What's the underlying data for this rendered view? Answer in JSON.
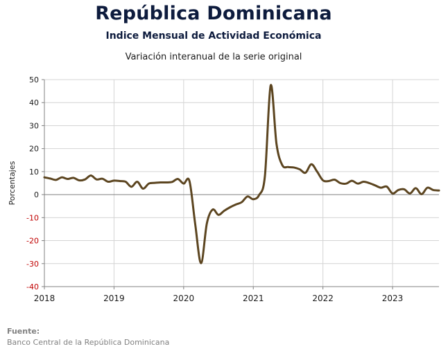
{
  "header": {
    "title": "República Dominicana",
    "subtitle": "Indice Mensual de  Actividad Económica",
    "subtitle2": "Variación interanual de la serie original"
  },
  "source": {
    "heading": "Fuente:",
    "text": "Banco Central de la República Dominicana"
  },
  "colors": {
    "line": "#5c4520",
    "zero_line": "#808080",
    "grid": "#d4d4d4",
    "negative_tick": "#c00000"
  },
  "chart_data": {
    "type": "line",
    "title": "República Dominicana",
    "xlabel": "",
    "ylabel": "Porcentajes",
    "ylim": [
      -40,
      50
    ],
    "yticks": [
      50,
      40,
      30,
      20,
      10,
      0,
      -10,
      -20,
      -30,
      -40
    ],
    "xlim": [
      "2018-01",
      "2023-09"
    ],
    "xticks": [
      "2018",
      "2019",
      "2020",
      "2021",
      "2022",
      "2023"
    ],
    "grid": true,
    "legend": "none",
    "series": [
      {
        "x": [
          "2018-01",
          "2018-02",
          "2018-03",
          "2018-04",
          "2018-05",
          "2018-06",
          "2018-07",
          "2018-08",
          "2018-09",
          "2018-10",
          "2018-11",
          "2018-12",
          "2019-01",
          "2019-02",
          "2019-03",
          "2019-04",
          "2019-05",
          "2019-06",
          "2019-07",
          "2019-08",
          "2019-09",
          "2019-10",
          "2019-11",
          "2019-12",
          "2020-01",
          "2020-02",
          "2020-03",
          "2020-04",
          "2020-05",
          "2020-06",
          "2020-07",
          "2020-08",
          "2020-09",
          "2020-10",
          "2020-11",
          "2020-12",
          "2021-01",
          "2021-02",
          "2021-03",
          "2021-04",
          "2021-05",
          "2021-06",
          "2021-07",
          "2021-08",
          "2021-09",
          "2021-10",
          "2021-11",
          "2021-12",
          "2022-01",
          "2022-02",
          "2022-03",
          "2022-04",
          "2022-05",
          "2022-06",
          "2022-07",
          "2022-08",
          "2022-09",
          "2022-10",
          "2022-11",
          "2022-12",
          "2023-01",
          "2023-02",
          "2023-03",
          "2023-04",
          "2023-05",
          "2023-06",
          "2023-07",
          "2023-08",
          "2023-09"
        ],
        "values": [
          7.5,
          7.0,
          6.4,
          7.5,
          6.8,
          7.3,
          6.2,
          6.6,
          8.3,
          6.6,
          6.9,
          5.6,
          6.1,
          5.9,
          5.6,
          3.4,
          5.6,
          2.6,
          4.8,
          5.1,
          5.3,
          5.3,
          5.5,
          6.8,
          4.8,
          5.9,
          -13.0,
          -29.8,
          -12.5,
          -6.5,
          -8.8,
          -7.0,
          -5.5,
          -4.3,
          -3.3,
          -0.8,
          -2.0,
          -0.2,
          8.0,
          47.5,
          22.0,
          12.8,
          12.0,
          11.8,
          11.0,
          9.5,
          13.2,
          10.0,
          6.2,
          5.9,
          6.5,
          5.0,
          4.8,
          6.0,
          4.8,
          5.6,
          5.0,
          4.0,
          3.0,
          3.5,
          0.5,
          2.0,
          2.3,
          0.5,
          2.8,
          0.2,
          3.0,
          2.0,
          1.8
        ]
      }
    ]
  }
}
